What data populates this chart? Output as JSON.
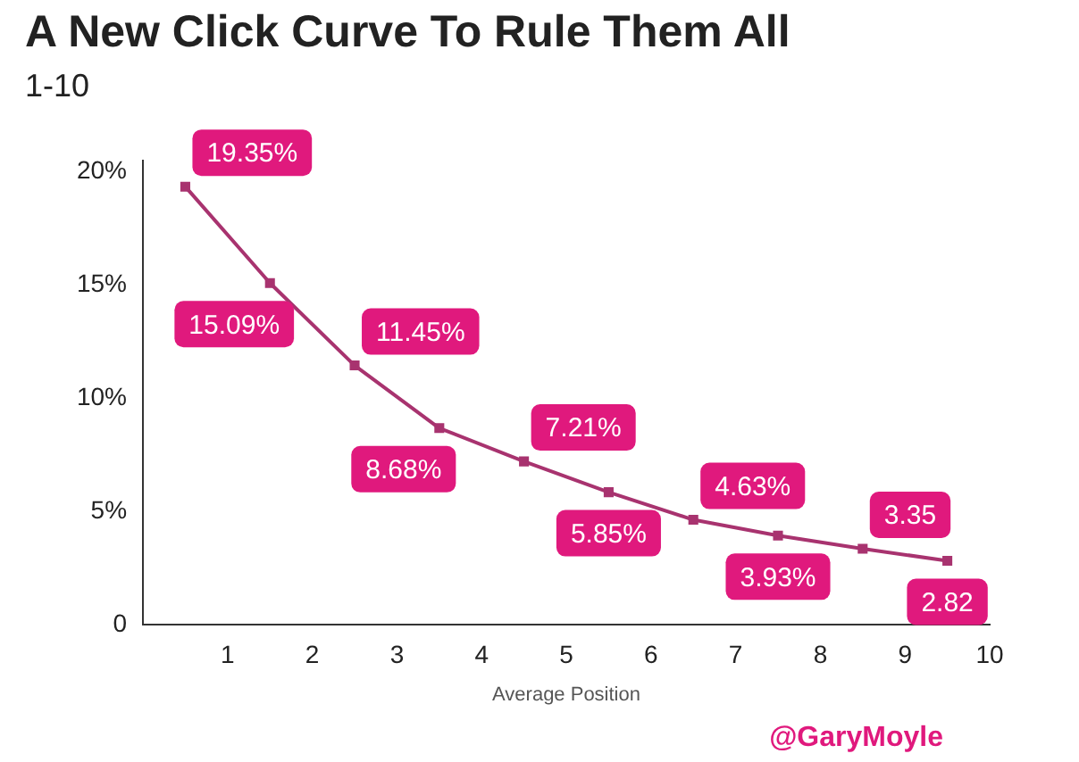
{
  "chart_data": {
    "type": "line",
    "title": "A New Click Curve To Rule Them All",
    "subtitle": "1-10",
    "xlabel": "Average Position",
    "annotations": [
      "@GaryMoyle"
    ],
    "x": [
      0.5,
      1.5,
      2.5,
      3.5,
      4.5,
      5.5,
      6.5,
      7.5,
      8.5,
      9.5
    ],
    "series": [
      {
        "color": "#a8336f",
        "values": [
          19.35,
          15.09,
          11.45,
          8.68,
          7.21,
          5.85,
          4.63,
          3.93,
          3.35,
          2.82
        ],
        "value_labels": [
          "19.35%",
          "15.09%",
          "11.45%",
          "8.68%",
          "7.21%",
          "5.85%",
          "4.63%",
          "3.93%",
          "3.35",
          "2.82"
        ]
      }
    ],
    "xlim": [
      0,
      10
    ],
    "xticks": [
      1,
      2,
      3,
      4,
      5,
      6,
      7,
      8,
      9,
      10
    ],
    "ylim": [
      0,
      20.5
    ],
    "yticks": [
      0,
      {
        "value": 5,
        "label": "5%"
      },
      {
        "value": 10,
        "label": "10%"
      },
      {
        "value": 15,
        "label": "15%"
      },
      {
        "value": 20,
        "label": "20%"
      }
    ],
    "grid": false,
    "legend": false,
    "marker": "square",
    "line_style": "solid"
  }
}
